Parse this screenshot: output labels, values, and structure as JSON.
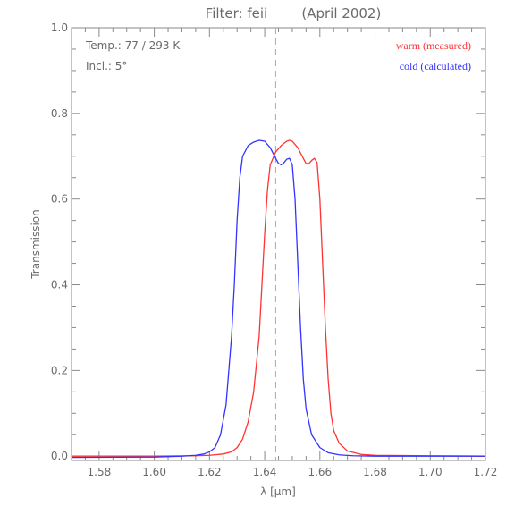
{
  "chart_data": {
    "type": "line",
    "title": "Filter: feii        (April 2002)",
    "xlabel": "λ [μm]",
    "ylabel": "Transmission",
    "xlim": [
      1.57,
      1.72
    ],
    "ylim": [
      -0.01,
      1.0
    ],
    "x_ticks": [
      1.58,
      1.6,
      1.62,
      1.64,
      1.66,
      1.68,
      1.7,
      1.72
    ],
    "x_tick_labels": [
      "1.58",
      "1.60",
      "1.62",
      "1.64",
      "1.66",
      "1.68",
      "1.70",
      "1.72"
    ],
    "y_ticks": [
      0.0,
      0.2,
      0.4,
      0.6,
      0.8,
      1.0
    ],
    "y_tick_labels": [
      "0.0",
      "0.2",
      "0.4",
      "0.6",
      "0.8",
      "1.0"
    ],
    "grid": false,
    "annotations": [
      "Temp.: 77 / 293 K",
      "Incl.: 5°"
    ],
    "reference_line": {
      "x": 1.644,
      "style": "dashed",
      "color": "#aaaaaa"
    },
    "legend_position": "top-right",
    "series": [
      {
        "name": "warm (measured)",
        "color": "#ff3333",
        "points": [
          [
            1.57,
            0.0
          ],
          [
            1.6,
            0.0
          ],
          [
            1.615,
            0.001
          ],
          [
            1.62,
            0.002
          ],
          [
            1.625,
            0.005
          ],
          [
            1.628,
            0.01
          ],
          [
            1.63,
            0.02
          ],
          [
            1.632,
            0.04
          ],
          [
            1.634,
            0.08
          ],
          [
            1.636,
            0.15
          ],
          [
            1.638,
            0.28
          ],
          [
            1.639,
            0.4
          ],
          [
            1.64,
            0.52
          ],
          [
            1.641,
            0.62
          ],
          [
            1.642,
            0.68
          ],
          [
            1.644,
            0.71
          ],
          [
            1.646,
            0.725
          ],
          [
            1.648,
            0.735
          ],
          [
            1.649,
            0.737
          ],
          [
            1.65,
            0.735
          ],
          [
            1.652,
            0.72
          ],
          [
            1.654,
            0.695
          ],
          [
            1.655,
            0.683
          ],
          [
            1.656,
            0.683
          ],
          [
            1.657,
            0.69
          ],
          [
            1.658,
            0.695
          ],
          [
            1.659,
            0.685
          ],
          [
            1.66,
            0.6
          ],
          [
            1.661,
            0.45
          ],
          [
            1.662,
            0.3
          ],
          [
            1.663,
            0.18
          ],
          [
            1.664,
            0.1
          ],
          [
            1.665,
            0.06
          ],
          [
            1.667,
            0.03
          ],
          [
            1.67,
            0.012
          ],
          [
            1.675,
            0.004
          ],
          [
            1.68,
            0.002
          ],
          [
            1.7,
            0.001
          ],
          [
            1.72,
            0.0
          ]
        ]
      },
      {
        "name": "cold (calculated)",
        "color": "#3333ff",
        "points": [
          [
            1.57,
            -0.003
          ],
          [
            1.6,
            -0.002
          ],
          [
            1.61,
            0.0
          ],
          [
            1.615,
            0.002
          ],
          [
            1.618,
            0.005
          ],
          [
            1.62,
            0.01
          ],
          [
            1.622,
            0.02
          ],
          [
            1.624,
            0.05
          ],
          [
            1.626,
            0.12
          ],
          [
            1.628,
            0.28
          ],
          [
            1.629,
            0.4
          ],
          [
            1.63,
            0.55
          ],
          [
            1.631,
            0.65
          ],
          [
            1.632,
            0.7
          ],
          [
            1.634,
            0.725
          ],
          [
            1.636,
            0.733
          ],
          [
            1.638,
            0.737
          ],
          [
            1.64,
            0.735
          ],
          [
            1.642,
            0.72
          ],
          [
            1.644,
            0.695
          ],
          [
            1.645,
            0.683
          ],
          [
            1.646,
            0.68
          ],
          [
            1.647,
            0.685
          ],
          [
            1.648,
            0.693
          ],
          [
            1.649,
            0.695
          ],
          [
            1.65,
            0.68
          ],
          [
            1.651,
            0.6
          ],
          [
            1.652,
            0.45
          ],
          [
            1.653,
            0.3
          ],
          [
            1.654,
            0.18
          ],
          [
            1.655,
            0.11
          ],
          [
            1.657,
            0.05
          ],
          [
            1.66,
            0.02
          ],
          [
            1.663,
            0.008
          ],
          [
            1.667,
            0.003
          ],
          [
            1.672,
            0.001
          ],
          [
            1.68,
            0.0
          ],
          [
            1.7,
            0.0
          ],
          [
            1.72,
            0.0
          ]
        ]
      }
    ]
  }
}
